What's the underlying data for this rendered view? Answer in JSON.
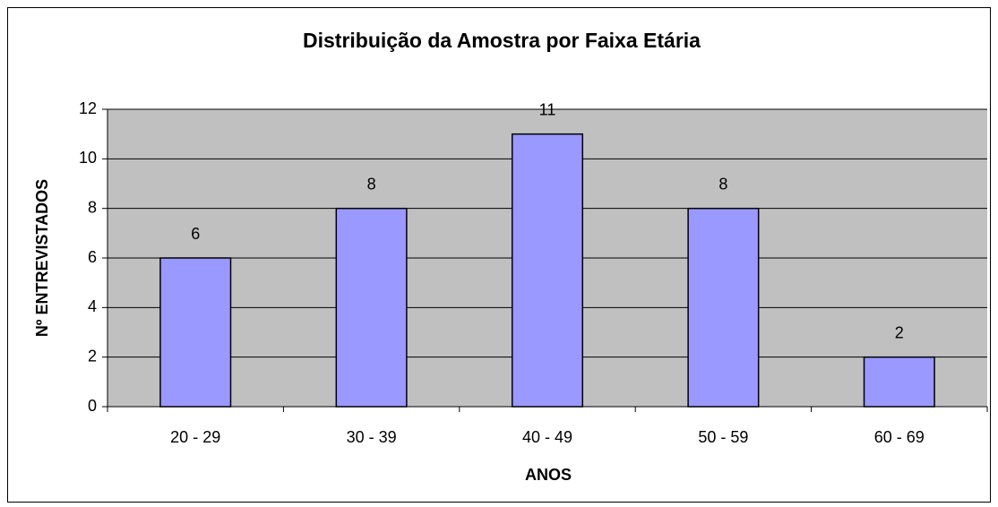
{
  "chart_data": {
    "type": "bar",
    "title": "Distribuição da Amostra por Faixa Etária",
    "x_label": "ANOS",
    "y_label": "Nº ENTREVISTADOS",
    "categories": [
      "20 - 29",
      "30 - 39",
      "40 - 49",
      "50 - 59",
      "60 - 69"
    ],
    "values": [
      6,
      8,
      11,
      8,
      2
    ],
    "color": "#9999ff",
    "ylim": [
      0,
      12
    ],
    "yticks": [
      0,
      2,
      4,
      6,
      8,
      10,
      12
    ],
    "grid": true
  }
}
